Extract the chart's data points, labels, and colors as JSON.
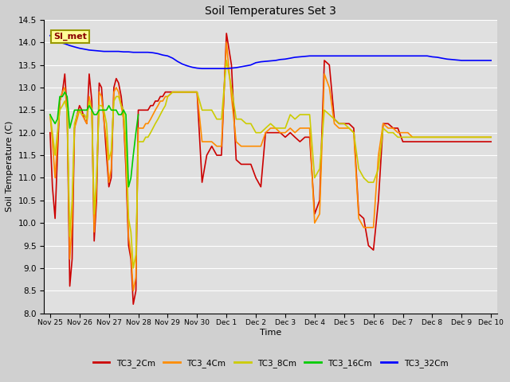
{
  "title": "Soil Temperatures Set 3",
  "xlabel": "Time",
  "ylabel": "Soil Temperature (C)",
  "ylim": [
    8.0,
    14.5
  ],
  "yticks": [
    8.0,
    8.5,
    9.0,
    9.5,
    10.0,
    10.5,
    11.0,
    11.5,
    12.0,
    12.5,
    13.0,
    13.5,
    14.0,
    14.5
  ],
  "annotation_text": "SI_met",
  "annotation_color": "#8B0000",
  "annotation_bg": "#FFFF99",
  "series": {
    "TC3_2Cm": {
      "color": "#CC0000",
      "x": [
        0.0,
        0.08,
        0.17,
        0.25,
        0.33,
        0.42,
        0.5,
        0.58,
        0.67,
        0.75,
        0.83,
        0.92,
        1.0,
        1.08,
        1.17,
        1.25,
        1.33,
        1.42,
        1.5,
        1.58,
        1.67,
        1.75,
        1.83,
        1.92,
        2.0,
        2.08,
        2.17,
        2.25,
        2.33,
        2.42,
        2.5,
        2.58,
        2.67,
        2.75,
        2.83,
        2.92,
        3.0,
        3.08,
        3.17,
        3.25,
        3.33,
        3.42,
        3.5,
        3.58,
        3.67,
        3.75,
        3.83,
        3.92,
        4.0,
        4.17,
        4.33,
        4.5,
        4.67,
        4.83,
        5.0,
        5.17,
        5.33,
        5.5,
        5.67,
        5.83,
        6.0,
        6.17,
        6.33,
        6.5,
        6.67,
        6.83,
        7.0,
        7.17,
        7.33,
        7.5,
        7.67,
        7.83,
        8.0,
        8.17,
        8.33,
        8.5,
        8.67,
        8.83,
        9.0,
        9.17,
        9.33,
        9.5,
        9.67,
        9.83,
        10.0,
        10.17,
        10.33,
        10.5,
        10.67,
        10.83,
        11.0,
        11.17,
        11.33,
        11.5,
        11.67,
        11.83,
        12.0,
        12.17,
        12.33,
        12.5,
        12.67,
        12.83,
        13.0,
        13.17,
        13.33,
        13.5,
        13.67,
        13.83,
        14.0,
        14.17,
        14.33,
        14.5,
        14.67,
        14.83,
        15.0
      ],
      "y": [
        12.0,
        10.8,
        10.1,
        11.5,
        12.7,
        12.9,
        13.3,
        12.5,
        8.6,
        9.2,
        12.1,
        12.4,
        12.6,
        12.5,
        12.3,
        12.2,
        13.3,
        12.7,
        9.6,
        10.5,
        13.1,
        13.0,
        12.3,
        11.5,
        10.8,
        11.0,
        13.0,
        13.2,
        13.1,
        12.8,
        12.3,
        11.2,
        9.5,
        9.2,
        8.2,
        8.5,
        12.5,
        12.5,
        12.5,
        12.5,
        12.5,
        12.6,
        12.6,
        12.7,
        12.7,
        12.8,
        12.8,
        12.9,
        12.9,
        12.9,
        12.9,
        12.9,
        12.9,
        12.9,
        12.9,
        10.9,
        11.5,
        11.7,
        11.5,
        11.5,
        14.2,
        13.5,
        11.4,
        11.3,
        11.3,
        11.3,
        11.0,
        10.8,
        12.0,
        12.0,
        12.0,
        12.0,
        11.9,
        12.0,
        11.9,
        11.8,
        11.9,
        11.9,
        10.2,
        10.5,
        13.6,
        13.5,
        12.3,
        12.2,
        12.2,
        12.2,
        12.1,
        10.2,
        10.1,
        9.5,
        9.4,
        10.5,
        12.2,
        12.2,
        12.1,
        12.1,
        11.8,
        11.8,
        11.8,
        11.8,
        11.8,
        11.8,
        11.8,
        11.8,
        11.8,
        11.8,
        11.8,
        11.8,
        11.8,
        11.8,
        11.8,
        11.8,
        11.8,
        11.8,
        11.8
      ]
    },
    "TC3_4Cm": {
      "color": "#FF8C00",
      "x": [
        0.0,
        0.08,
        0.17,
        0.25,
        0.33,
        0.42,
        0.5,
        0.58,
        0.67,
        0.75,
        0.83,
        0.92,
        1.0,
        1.08,
        1.17,
        1.25,
        1.33,
        1.42,
        1.5,
        1.58,
        1.67,
        1.75,
        1.83,
        1.92,
        2.0,
        2.08,
        2.17,
        2.25,
        2.33,
        2.42,
        2.5,
        2.58,
        2.67,
        2.75,
        2.83,
        2.92,
        3.0,
        3.08,
        3.17,
        3.25,
        3.33,
        3.42,
        3.5,
        3.58,
        3.67,
        3.75,
        3.83,
        3.92,
        4.0,
        4.17,
        4.33,
        4.5,
        4.67,
        4.83,
        5.0,
        5.17,
        5.33,
        5.5,
        5.67,
        5.83,
        6.0,
        6.17,
        6.33,
        6.5,
        6.67,
        6.83,
        7.0,
        7.17,
        7.33,
        7.5,
        7.67,
        7.83,
        8.0,
        8.17,
        8.33,
        8.5,
        8.67,
        8.83,
        9.0,
        9.17,
        9.33,
        9.5,
        9.67,
        9.83,
        10.0,
        10.17,
        10.33,
        10.5,
        10.67,
        10.83,
        11.0,
        11.17,
        11.33,
        11.5,
        11.67,
        11.83,
        12.0,
        12.17,
        12.33,
        12.5,
        12.67,
        12.83,
        13.0,
        13.17,
        13.33,
        13.5,
        13.67,
        13.83,
        14.0,
        14.17,
        14.33,
        14.5,
        14.67,
        14.83,
        15.0
      ],
      "y": [
        12.4,
        11.8,
        11.0,
        11.8,
        12.7,
        12.9,
        13.0,
        12.5,
        9.2,
        10.0,
        12.1,
        12.3,
        12.5,
        12.4,
        12.3,
        12.2,
        12.8,
        12.5,
        9.8,
        10.8,
        12.9,
        12.8,
        12.3,
        11.8,
        10.9,
        11.2,
        12.9,
        13.0,
        12.9,
        12.6,
        12.3,
        11.4,
        9.7,
        9.3,
        8.5,
        8.8,
        12.1,
        12.1,
        12.1,
        12.2,
        12.2,
        12.3,
        12.4,
        12.5,
        12.6,
        12.7,
        12.7,
        12.8,
        12.8,
        12.9,
        12.9,
        12.9,
        12.9,
        12.9,
        12.9,
        11.8,
        11.8,
        11.8,
        11.7,
        11.7,
        14.0,
        12.8,
        11.8,
        11.7,
        11.7,
        11.7,
        11.7,
        11.7,
        12.0,
        12.1,
        12.1,
        12.0,
        12.0,
        12.1,
        12.0,
        12.1,
        12.1,
        12.1,
        10.0,
        10.2,
        13.3,
        13.0,
        12.2,
        12.1,
        12.1,
        12.1,
        12.0,
        10.1,
        9.9,
        9.9,
        9.9,
        11.5,
        12.2,
        12.1,
        12.1,
        12.0,
        12.0,
        12.0,
        11.9,
        11.9,
        11.9,
        11.9,
        11.9,
        11.9,
        11.9,
        11.9,
        11.9,
        11.9,
        11.9,
        11.9,
        11.9,
        11.9,
        11.9,
        11.9,
        11.9
      ]
    },
    "TC3_8Cm": {
      "color": "#CCCC00",
      "x": [
        0.0,
        0.08,
        0.17,
        0.25,
        0.33,
        0.42,
        0.5,
        0.58,
        0.67,
        0.75,
        0.83,
        0.92,
        1.0,
        1.08,
        1.17,
        1.25,
        1.33,
        1.42,
        1.5,
        1.58,
        1.67,
        1.75,
        1.83,
        1.92,
        2.0,
        2.08,
        2.17,
        2.25,
        2.33,
        2.42,
        2.5,
        2.58,
        2.67,
        2.75,
        2.83,
        2.92,
        3.0,
        3.08,
        3.17,
        3.25,
        3.33,
        3.42,
        3.5,
        3.58,
        3.67,
        3.75,
        3.83,
        3.92,
        4.0,
        4.17,
        4.33,
        4.5,
        4.67,
        4.83,
        5.0,
        5.17,
        5.33,
        5.5,
        5.67,
        5.83,
        6.0,
        6.17,
        6.33,
        6.5,
        6.67,
        6.83,
        7.0,
        7.17,
        7.33,
        7.5,
        7.67,
        7.83,
        8.0,
        8.17,
        8.33,
        8.5,
        8.67,
        8.83,
        9.0,
        9.17,
        9.33,
        9.5,
        9.67,
        9.83,
        10.0,
        10.17,
        10.33,
        10.5,
        10.67,
        10.83,
        11.0,
        11.17,
        11.33,
        11.5,
        11.67,
        11.83,
        12.0,
        12.17,
        12.33,
        12.5,
        12.67,
        12.83,
        13.0,
        13.17,
        13.33,
        13.5,
        13.67,
        13.83,
        14.0,
        14.17,
        14.33,
        14.5,
        14.67,
        14.83,
        15.0
      ],
      "y": [
        12.4,
        12.0,
        11.5,
        12.0,
        12.5,
        12.6,
        12.7,
        12.5,
        9.7,
        10.5,
        12.2,
        12.4,
        12.5,
        12.4,
        12.4,
        12.3,
        12.7,
        12.5,
        10.2,
        11.0,
        12.6,
        12.6,
        12.5,
        12.2,
        11.4,
        11.6,
        12.7,
        12.8,
        12.8,
        12.6,
        12.5,
        11.8,
        10.1,
        9.8,
        9.0,
        9.3,
        11.8,
        11.8,
        11.8,
        11.9,
        11.9,
        12.0,
        12.1,
        12.2,
        12.3,
        12.4,
        12.5,
        12.6,
        12.8,
        12.9,
        12.9,
        12.9,
        12.9,
        12.9,
        12.9,
        12.5,
        12.5,
        12.5,
        12.3,
        12.3,
        13.6,
        13.0,
        12.3,
        12.3,
        12.2,
        12.2,
        12.0,
        12.0,
        12.1,
        12.2,
        12.1,
        12.1,
        12.1,
        12.4,
        12.3,
        12.4,
        12.4,
        12.4,
        11.0,
        11.2,
        12.5,
        12.4,
        12.3,
        12.2,
        12.2,
        12.1,
        12.0,
        11.2,
        11.0,
        10.9,
        10.9,
        11.2,
        12.1,
        12.0,
        12.0,
        11.9,
        11.9,
        11.9,
        11.9,
        11.9,
        11.9,
        11.9,
        11.9,
        11.9,
        11.9,
        11.9,
        11.9,
        11.9,
        11.9,
        11.9,
        11.9,
        11.9,
        11.9,
        11.9,
        11.9
      ]
    },
    "TC3_16Cm": {
      "color": "#00CC00",
      "x": [
        0.0,
        0.08,
        0.17,
        0.25,
        0.33,
        0.42,
        0.5,
        0.58,
        0.67,
        0.75,
        0.83,
        0.92,
        1.0,
        1.08,
        1.17,
        1.25,
        1.33,
        1.42,
        1.5,
        1.58,
        1.67,
        1.75,
        1.83,
        1.92,
        2.0,
        2.08,
        2.17,
        2.25,
        2.33,
        2.42,
        2.5,
        2.58,
        2.67,
        2.75,
        2.83,
        2.92,
        3.0
      ],
      "y": [
        12.4,
        12.3,
        12.2,
        12.3,
        12.8,
        12.8,
        12.9,
        12.8,
        12.1,
        12.3,
        12.5,
        12.5,
        12.5,
        12.5,
        12.5,
        12.5,
        12.6,
        12.5,
        12.4,
        12.4,
        12.5,
        12.5,
        12.5,
        12.5,
        12.6,
        12.5,
        12.5,
        12.5,
        12.4,
        12.4,
        12.5,
        12.4,
        10.8,
        11.0,
        11.5,
        12.0,
        12.4
      ]
    },
    "TC3_32Cm": {
      "color": "#0000FF",
      "x": [
        0.0,
        0.17,
        0.33,
        0.5,
        0.67,
        0.83,
        1.0,
        1.17,
        1.33,
        1.5,
        1.67,
        1.83,
        2.0,
        2.17,
        2.33,
        2.5,
        2.67,
        2.83,
        3.0,
        3.17,
        3.33,
        3.5,
        3.67,
        3.83,
        4.0,
        4.17,
        4.33,
        4.5,
        4.67,
        4.83,
        5.0,
        5.17,
        5.33,
        5.5,
        5.67,
        5.83,
        6.0,
        6.17,
        6.33,
        6.5,
        6.67,
        6.83,
        7.0,
        7.17,
        7.33,
        7.5,
        7.67,
        7.83,
        8.0,
        8.17,
        8.33,
        8.5,
        8.67,
        8.83,
        9.0,
        9.17,
        9.33,
        9.5,
        9.67,
        9.83,
        10.0,
        10.17,
        10.33,
        10.5,
        10.67,
        10.83,
        11.0,
        11.17,
        11.33,
        11.5,
        11.67,
        11.83,
        12.0,
        12.17,
        12.33,
        12.5,
        12.67,
        12.83,
        13.0,
        13.17,
        13.33,
        13.5,
        13.67,
        13.83,
        14.0,
        14.17,
        14.33,
        14.5,
        14.67,
        14.83,
        15.0
      ],
      "y": [
        14.15,
        14.05,
        14.0,
        13.97,
        13.93,
        13.9,
        13.87,
        13.85,
        13.83,
        13.82,
        13.81,
        13.8,
        13.8,
        13.8,
        13.8,
        13.79,
        13.79,
        13.78,
        13.78,
        13.78,
        13.78,
        13.77,
        13.75,
        13.72,
        13.7,
        13.65,
        13.58,
        13.52,
        13.48,
        13.45,
        13.43,
        13.42,
        13.42,
        13.42,
        13.42,
        13.42,
        13.42,
        13.43,
        13.44,
        13.46,
        13.48,
        13.5,
        13.55,
        13.57,
        13.58,
        13.59,
        13.6,
        13.62,
        13.63,
        13.65,
        13.67,
        13.68,
        13.69,
        13.7,
        13.7,
        13.7,
        13.7,
        13.7,
        13.7,
        13.7,
        13.7,
        13.7,
        13.7,
        13.7,
        13.7,
        13.7,
        13.7,
        13.7,
        13.7,
        13.7,
        13.7,
        13.7,
        13.7,
        13.7,
        13.7,
        13.7,
        13.7,
        13.7,
        13.68,
        13.67,
        13.65,
        13.63,
        13.62,
        13.61,
        13.6,
        13.6,
        13.6,
        13.6,
        13.6,
        13.6,
        13.6
      ]
    }
  },
  "xtick_labels": [
    "Nov 25",
    "Nov 26",
    "Nov 27",
    "Nov 28",
    "Nov 29",
    "Nov 30",
    "Dec 1",
    "Dec 2",
    "Dec 3",
    "Dec 4",
    "Dec 5",
    "Dec 6",
    "Dec 7",
    "Dec 8",
    "Dec 9",
    "Dec 10"
  ],
  "xtick_positions": [
    0,
    1,
    2,
    3,
    4,
    5,
    6,
    7,
    8,
    9,
    10,
    11,
    12,
    13,
    14,
    15
  ],
  "legend_entries": [
    "TC3_2Cm",
    "TC3_4Cm",
    "TC3_8Cm",
    "TC3_16Cm",
    "TC3_32Cm"
  ],
  "legend_colors": [
    "#CC0000",
    "#FF8C00",
    "#CCCC00",
    "#00CC00",
    "#0000FF"
  ]
}
